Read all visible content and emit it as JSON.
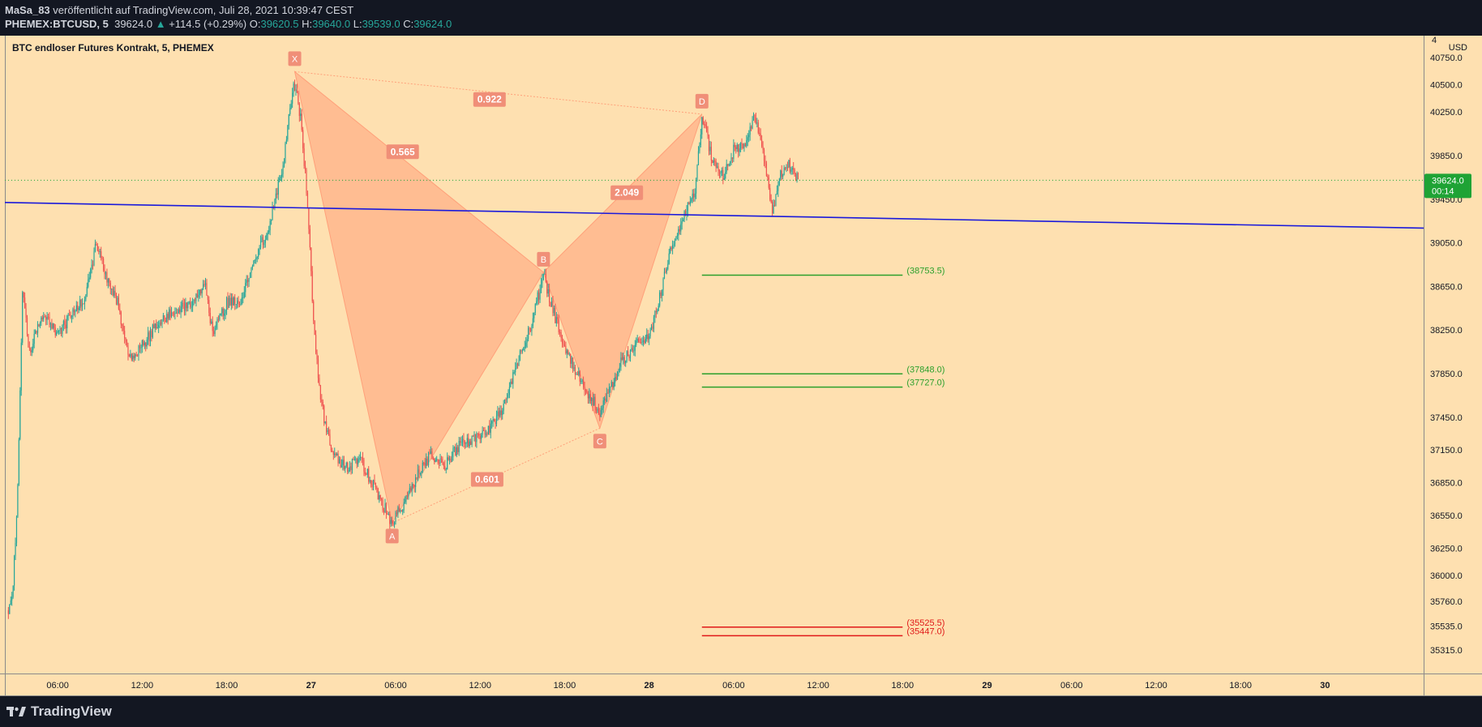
{
  "header": {
    "author": "MaSa_83",
    "published": "veröffentlicht auf TradingView.com, Juli 28, 2021 10:39:47 CEST",
    "symbol": "PHEMEX:BTCUSD, 5",
    "last": "39624.0",
    "change_arrow": "▲",
    "change": "+114.5 (+0.29%)",
    "o_label": "O:",
    "o_value": "39620.5",
    "h_label": "H:",
    "h_value": "39640.0",
    "l_label": "L:",
    "l_value": "39539.0",
    "c_label": "C:",
    "c_value": "39624.0"
  },
  "footer": {
    "brand": "TradingView"
  },
  "colors": {
    "background": "#fee0b0",
    "up": "#26a69a",
    "down": "#ef5350",
    "pattern_fill": "#ffa07a",
    "pattern_label": "#f08f78",
    "trendline": "#1a1adb",
    "target_green": "#2ca02c",
    "target_red": "#e01919",
    "price_badge": "#1fa335"
  },
  "chart_data": {
    "type": "candlestick",
    "title": "BTC endloser Futures Kontrakt, 5, PHEMEX",
    "currency": "USD",
    "interval_minutes": 5,
    "x_range": [
      "2021-07-26T02:15",
      "2021-07-30T07:00"
    ],
    "ylim": [
      35100,
      40950
    ],
    "y_ticks": [
      "40750.0",
      "40500.0",
      "40250.0",
      "39850.0",
      "39450.0",
      "39050.0",
      "38650.0",
      "38250.0",
      "37850.0",
      "37450.0",
      "37150.0",
      "36850.0",
      "36550.0",
      "36250.0",
      "36000.0",
      "35760.0",
      "35535.0",
      "35315.0"
    ],
    "y_tick_values": [
      40750,
      40500,
      40250,
      39850,
      39450,
      39050,
      38650,
      38250,
      37850,
      37450,
      37150,
      36850,
      36550,
      36250,
      36000,
      35760,
      35535,
      35315
    ],
    "top_tick": "4",
    "x_ticks": [
      {
        "t": "2021-07-26T06:00",
        "label": "06:00",
        "bold": false
      },
      {
        "t": "2021-07-26T12:00",
        "label": "12:00",
        "bold": false
      },
      {
        "t": "2021-07-26T18:00",
        "label": "18:00",
        "bold": false
      },
      {
        "t": "2021-07-27T00:00",
        "label": "27",
        "bold": true
      },
      {
        "t": "2021-07-27T06:00",
        "label": "06:00",
        "bold": false
      },
      {
        "t": "2021-07-27T12:00",
        "label": "12:00",
        "bold": false
      },
      {
        "t": "2021-07-27T18:00",
        "label": "18:00",
        "bold": false
      },
      {
        "t": "2021-07-28T00:00",
        "label": "28",
        "bold": true
      },
      {
        "t": "2021-07-28T06:00",
        "label": "06:00",
        "bold": false
      },
      {
        "t": "2021-07-28T12:00",
        "label": "12:00",
        "bold": false
      },
      {
        "t": "2021-07-28T18:00",
        "label": "18:00",
        "bold": false
      },
      {
        "t": "2021-07-29T00:00",
        "label": "29",
        "bold": true
      },
      {
        "t": "2021-07-29T06:00",
        "label": "06:00",
        "bold": false
      },
      {
        "t": "2021-07-29T12:00",
        "label": "12:00",
        "bold": false
      },
      {
        "t": "2021-07-29T18:00",
        "label": "18:00",
        "bold": false
      },
      {
        "t": "2021-07-30T00:00",
        "label": "30",
        "bold": true
      }
    ],
    "price_path": [
      [
        "2021-07-26T02:30",
        35680
      ],
      [
        "2021-07-26T02:50",
        35900
      ],
      [
        "2021-07-26T03:10",
        36800
      ],
      [
        "2021-07-26T03:30",
        38600
      ],
      [
        "2021-07-26T04:00",
        38050
      ],
      [
        "2021-07-26T05:00",
        38400
      ],
      [
        "2021-07-26T06:00",
        38200
      ],
      [
        "2021-07-26T07:00",
        38400
      ],
      [
        "2021-07-26T08:00",
        38550
      ],
      [
        "2021-07-26T08:45",
        39050
      ],
      [
        "2021-07-26T09:30",
        38700
      ],
      [
        "2021-07-26T10:15",
        38500
      ],
      [
        "2021-07-26T11:00",
        38000
      ],
      [
        "2021-07-26T12:00",
        38100
      ],
      [
        "2021-07-26T13:00",
        38300
      ],
      [
        "2021-07-26T14:30",
        38450
      ],
      [
        "2021-07-26T15:30",
        38500
      ],
      [
        "2021-07-26T16:30",
        38650
      ],
      [
        "2021-07-26T17:00",
        38200
      ],
      [
        "2021-07-26T18:00",
        38500
      ],
      [
        "2021-07-26T19:00",
        38500
      ],
      [
        "2021-07-26T20:00",
        38900
      ],
      [
        "2021-07-26T21:00",
        39200
      ],
      [
        "2021-07-26T22:00",
        39750
      ],
      [
        "2021-07-26T22:45",
        40550
      ],
      [
        "2021-07-26T23:15",
        40200
      ],
      [
        "2021-07-26T23:45",
        39400
      ],
      [
        "2021-07-27T00:10",
        38300
      ],
      [
        "2021-07-27T00:40",
        37600
      ],
      [
        "2021-07-27T01:30",
        37100
      ],
      [
        "2021-07-27T02:30",
        37000
      ],
      [
        "2021-07-27T03:30",
        37050
      ],
      [
        "2021-07-27T04:30",
        36800
      ],
      [
        "2021-07-27T05:45",
        36480
      ],
      [
        "2021-07-27T06:30",
        36650
      ],
      [
        "2021-07-27T07:30",
        36900
      ],
      [
        "2021-07-27T08:30",
        37100
      ],
      [
        "2021-07-27T09:30",
        37000
      ],
      [
        "2021-07-27T10:30",
        37200
      ],
      [
        "2021-07-27T11:30",
        37250
      ],
      [
        "2021-07-27T12:30",
        37300
      ],
      [
        "2021-07-27T13:30",
        37500
      ],
      [
        "2021-07-27T14:30",
        37900
      ],
      [
        "2021-07-27T15:30",
        38250
      ],
      [
        "2021-07-27T16:30",
        38750
      ],
      [
        "2021-07-27T17:15",
        38400
      ],
      [
        "2021-07-27T18:00",
        38100
      ],
      [
        "2021-07-27T18:45",
        37900
      ],
      [
        "2021-07-27T19:30",
        37700
      ],
      [
        "2021-07-27T20:30",
        37500
      ],
      [
        "2021-07-27T21:15",
        37700
      ],
      [
        "2021-07-27T22:00",
        37950
      ],
      [
        "2021-07-27T23:00",
        38100
      ],
      [
        "2021-07-28T00:00",
        38200
      ],
      [
        "2021-07-28T00:40",
        38500
      ],
      [
        "2021-07-28T01:30",
        39000
      ],
      [
        "2021-07-28T02:30",
        39300
      ],
      [
        "2021-07-28T03:15",
        39500
      ],
      [
        "2021-07-28T03:45",
        40200
      ],
      [
        "2021-07-28T04:30",
        39800
      ],
      [
        "2021-07-28T05:15",
        39650
      ],
      [
        "2021-07-28T06:00",
        39900
      ],
      [
        "2021-07-28T06:45",
        39950
      ],
      [
        "2021-07-28T07:30",
        40200
      ],
      [
        "2021-07-28T08:15",
        39750
      ],
      [
        "2021-07-28T08:45",
        39350
      ],
      [
        "2021-07-28T09:15",
        39650
      ],
      [
        "2021-07-28T09:45",
        39800
      ],
      [
        "2021-07-28T10:15",
        39700
      ],
      [
        "2021-07-28T10:35",
        39624
      ]
    ],
    "last_price": "39624.0",
    "countdown": "00:14",
    "harmonic_pattern": {
      "points": [
        {
          "label": "X",
          "t": "2021-07-26T22:50",
          "price": 40620
        },
        {
          "label": "A",
          "t": "2021-07-27T05:45",
          "price": 36480
        },
        {
          "label": "B",
          "t": "2021-07-27T16:30",
          "price": 38780
        },
        {
          "label": "C",
          "t": "2021-07-27T20:30",
          "price": 37350
        },
        {
          "label": "D",
          "t": "2021-07-28T03:45",
          "price": 40230
        }
      ],
      "ratios": [
        {
          "text": "0.922",
          "t": "2021-07-27T12:40",
          "price": 40365
        },
        {
          "text": "0.565",
          "t": "2021-07-27T06:30",
          "price": 39885
        },
        {
          "text": "2.049",
          "t": "2021-07-27T22:25",
          "price": 39510
        },
        {
          "text": "0.601",
          "t": "2021-07-27T12:30",
          "price": 36880
        }
      ]
    },
    "trendline": {
      "from": [
        "2021-07-26T02:15",
        39420
      ],
      "to": [
        "2021-07-30T07:00",
        39185
      ]
    },
    "target_levels": [
      {
        "label": "(38753.5)",
        "price": 38753.5,
        "color": "green"
      },
      {
        "label": "(37848.0)",
        "price": 37848.0,
        "color": "green"
      },
      {
        "label": "(37727.0)",
        "price": 37727.0,
        "color": "green"
      },
      {
        "label": "(35525.5)",
        "price": 35525.5,
        "color": "red"
      },
      {
        "label": "(35447.0)",
        "price": 35447.0,
        "color": "red"
      }
    ],
    "target_range": [
      "2021-07-28T03:45",
      "2021-07-28T18:00"
    ]
  }
}
